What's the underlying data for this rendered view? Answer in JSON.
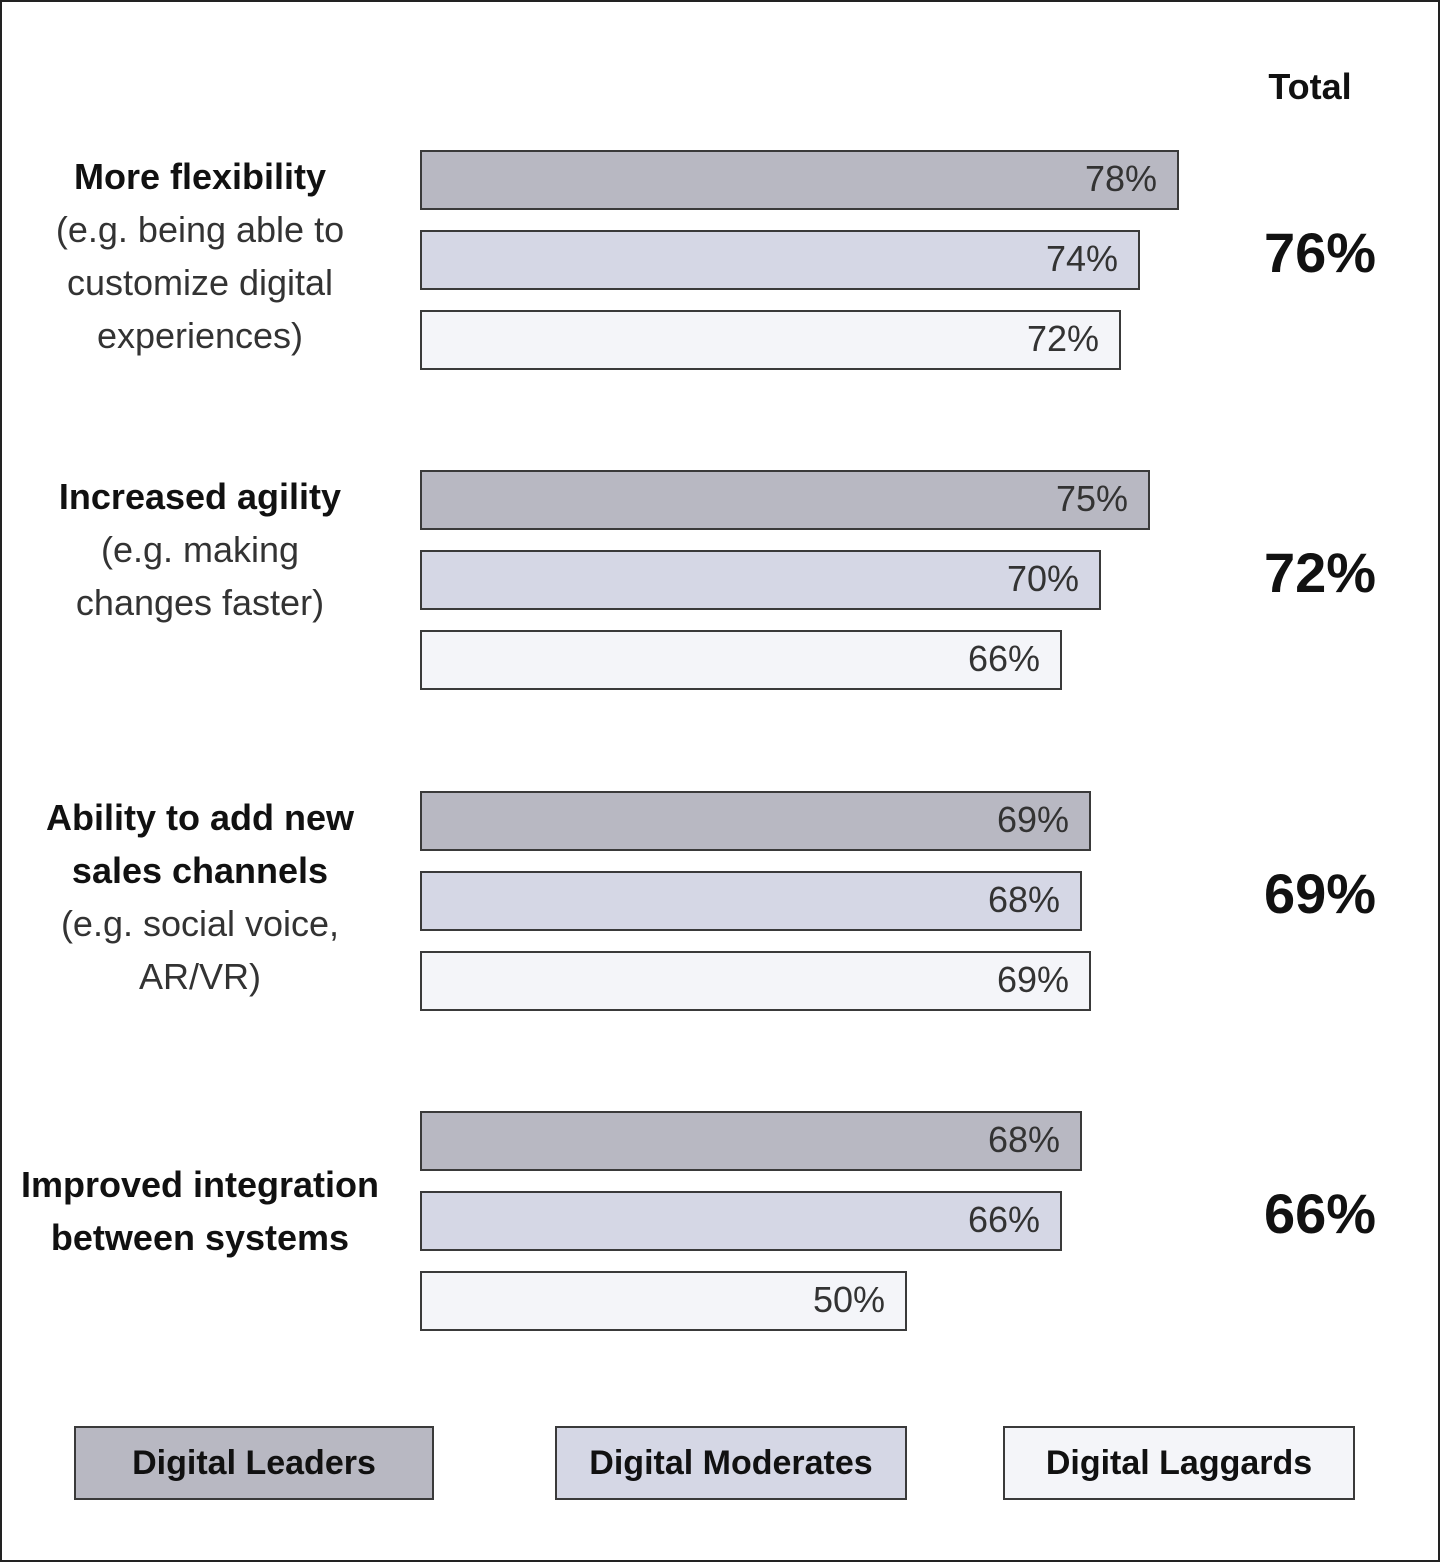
{
  "chart_data": {
    "type": "bar",
    "orientation": "horizontal",
    "title": "",
    "xlabel": "",
    "ylabel": "",
    "xlim": [
      0,
      100
    ],
    "grid": false,
    "legend_position": "bottom",
    "total_header": "Total",
    "categories": [
      {
        "title": "More flexibility",
        "subtitle": "(e.g. being able to customize digital experiences)",
        "subtitle_lines": [
          "(e.g. being able to",
          "customize digital",
          "experiences)"
        ],
        "title_lines": [
          "More flexibility"
        ],
        "total": "76%"
      },
      {
        "title": "Increased agility",
        "subtitle": "(e.g. making changes faster)",
        "subtitle_lines": [
          "(e.g. making",
          "changes faster)"
        ],
        "title_lines": [
          "Increased agility"
        ],
        "total": "72%"
      },
      {
        "title": "Ability to add new sales channels",
        "subtitle": "(e.g. social voice, AR/VR)",
        "subtitle_lines": [
          "(e.g. social voice,",
          "AR/VR)"
        ],
        "title_lines": [
          "Ability to add new",
          "sales channels"
        ],
        "total": "69%"
      },
      {
        "title": "Improved integration between systems",
        "subtitle": "",
        "subtitle_lines": [],
        "title_lines": [
          "Improved integration",
          "between systems"
        ],
        "total": "66%"
      }
    ],
    "series": [
      {
        "name": "Digital Leaders",
        "color": "#b8b8c2",
        "values": [
          78,
          75,
          69,
          68
        ]
      },
      {
        "name": "Digital Moderates",
        "color": "#d5d7e5",
        "values": [
          74,
          70,
          68,
          66
        ]
      },
      {
        "name": "Digital Laggards",
        "color": "#f4f5f9",
        "values": [
          72,
          66,
          69,
          50
        ]
      }
    ],
    "totals": [
      76,
      72,
      69,
      66
    ]
  }
}
